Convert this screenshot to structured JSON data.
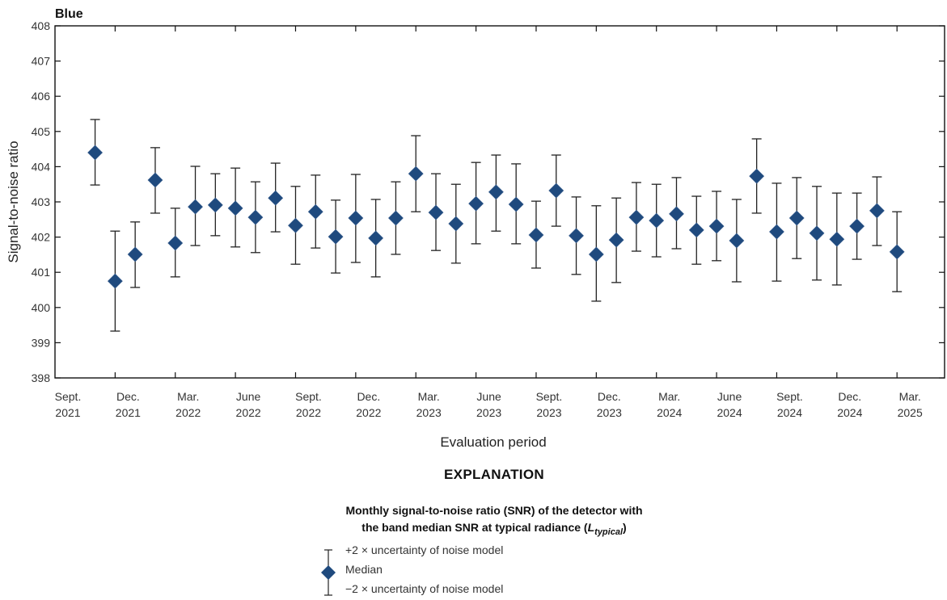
{
  "panel_title": "Blue",
  "axes": {
    "y_label": "Signal-to-noise ratio",
    "x_label": "Evaluation period",
    "y_ticks": [
      408,
      407,
      406,
      405,
      404,
      403,
      402,
      401,
      400,
      399,
      398
    ],
    "x_ticks": [
      {
        "month": "Sept.",
        "year": "2021"
      },
      {
        "month": "Dec.",
        "year": "2021"
      },
      {
        "month": "Mar.",
        "year": "2022"
      },
      {
        "month": "June",
        "year": "2022"
      },
      {
        "month": "Sept.",
        "year": "2022"
      },
      {
        "month": "Dec.",
        "year": "2022"
      },
      {
        "month": "Mar.",
        "year": "2023"
      },
      {
        "month": "June",
        "year": "2023"
      },
      {
        "month": "Sept.",
        "year": "2023"
      },
      {
        "month": "Dec.",
        "year": "2023"
      },
      {
        "month": "Mar.",
        "year": "2024"
      },
      {
        "month": "June",
        "year": "2024"
      },
      {
        "month": "Sept.",
        "year": "2024"
      },
      {
        "month": "Dec.",
        "year": "2024"
      },
      {
        "month": "Mar.",
        "year": "2025"
      }
    ]
  },
  "legend": {
    "heading": "EXPLANATION",
    "description_line1": "Monthly signal-to-noise ratio (SNR) of the detector with",
    "description_line2_prefix": "the band median SNR at typical radiance (",
    "description_symbol": "L",
    "description_subscript": "typical",
    "description_line2_suffix": ")",
    "items": [
      {
        "label": "+2 × uncertainty of noise model"
      },
      {
        "label": "Median"
      },
      {
        "label": "−2 × uncertainty of noise model"
      }
    ]
  },
  "colors": {
    "marker": "#1f4a7e",
    "marker_edge": "#3a5f8f",
    "errorbar": "#222222",
    "axis": "#111111"
  },
  "chart_data": {
    "type": "scatter",
    "title": "Blue",
    "xlabel": "Evaluation period",
    "ylabel": "Signal-to-noise ratio",
    "ylim": [
      398,
      408
    ],
    "xlim": [
      "2021-09",
      "2025-05"
    ],
    "grid": false,
    "legend_position": "below",
    "x_tick_labels": [
      "Sept. 2021",
      "Dec. 2021",
      "Mar. 2022",
      "June 2022",
      "Sept. 2022",
      "Dec. 2022",
      "Mar. 2023",
      "June 2023",
      "Sept. 2023",
      "Dec. 2023",
      "Mar. 2024",
      "June 2024",
      "Sept. 2024",
      "Dec. 2024",
      "Mar. 2025"
    ],
    "series": [
      {
        "name": "Median",
        "marker": "diamond",
        "error_bars": "±2 × uncertainty of noise model",
        "x": [
          "2021-11",
          "2021-12",
          "2022-01",
          "2022-02",
          "2022-03",
          "2022-04",
          "2022-05",
          "2022-06",
          "2022-07",
          "2022-08",
          "2022-09",
          "2022-10",
          "2022-11",
          "2022-12",
          "2023-01",
          "2023-02",
          "2023-03",
          "2023-04",
          "2023-05",
          "2023-06",
          "2023-07",
          "2023-08",
          "2023-09",
          "2023-10",
          "2023-11",
          "2023-12",
          "2024-01",
          "2024-02",
          "2024-03",
          "2024-04",
          "2024-05",
          "2024-06",
          "2024-07",
          "2024-08",
          "2024-09",
          "2024-10",
          "2024-11",
          "2024-12",
          "2025-01",
          "2025-02",
          "2025-03"
        ],
        "values": [
          404.4,
          400.75,
          401.51,
          403.62,
          401.83,
          402.86,
          402.91,
          402.82,
          402.56,
          403.11,
          402.33,
          402.72,
          402.01,
          402.54,
          401.97,
          402.54,
          403.8,
          402.7,
          402.38,
          402.95,
          403.28,
          402.93,
          402.06,
          403.32,
          402.04,
          401.51,
          401.92,
          402.56,
          402.47,
          402.66,
          402.2,
          402.31,
          401.9,
          403.73,
          402.15,
          402.54,
          402.11,
          401.94,
          402.31,
          402.75,
          401.58
        ],
        "upper": [
          405.34,
          402.17,
          402.43,
          404.54,
          402.82,
          404.01,
          403.8,
          403.96,
          403.57,
          404.1,
          403.44,
          403.76,
          403.05,
          403.78,
          403.07,
          403.57,
          404.88,
          403.8,
          403.5,
          404.12,
          404.33,
          404.08,
          403.02,
          404.33,
          403.14,
          402.89,
          403.11,
          403.55,
          403.5,
          403.69,
          403.16,
          403.3,
          403.07,
          404.79,
          403.53,
          403.69,
          403.44,
          403.25,
          403.25,
          403.71,
          402.72
        ],
        "lower": [
          403.48,
          399.33,
          400.57,
          402.68,
          400.87,
          401.76,
          402.04,
          401.72,
          401.56,
          402.15,
          401.23,
          401.69,
          400.98,
          401.28,
          400.87,
          401.51,
          402.72,
          401.62,
          401.26,
          401.81,
          402.17,
          401.81,
          401.12,
          402.31,
          400.94,
          400.18,
          400.71,
          401.6,
          401.44,
          401.67,
          401.23,
          401.33,
          400.73,
          402.68,
          400.75,
          401.39,
          400.78,
          400.64,
          401.37,
          401.76,
          400.45
        ]
      }
    ]
  }
}
